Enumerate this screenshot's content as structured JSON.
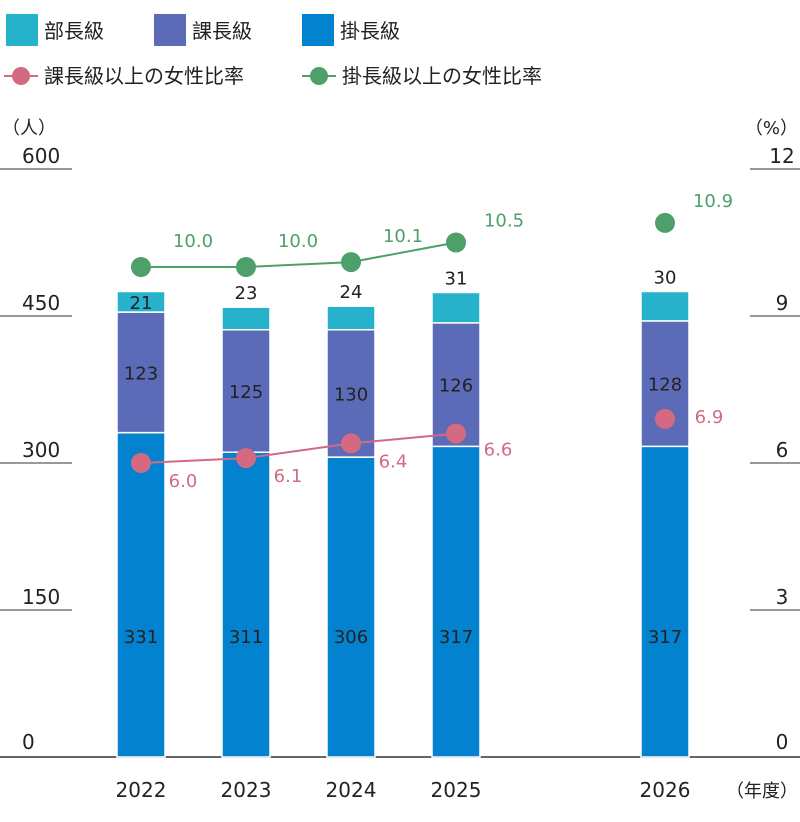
{
  "legend": {
    "bars": [
      {
        "name": "部長級",
        "color": "#26b2cb"
      },
      {
        "name": "課長級",
        "color": "#5b6bb7"
      },
      {
        "name": "掛長級",
        "color": "#0382d0"
      }
    ],
    "lines": [
      {
        "name": "課長級以上の女性比率",
        "color": "#d46a82"
      },
      {
        "name": "掛長級以上の女性比率",
        "color": "#4ea06a"
      }
    ]
  },
  "axes": {
    "left_unit": "（人）",
    "right_unit": "（%）",
    "x_unit": "（年度）",
    "left_ticks": [
      "0",
      "150",
      "300",
      "450",
      "600"
    ],
    "right_ticks": [
      "0",
      "3",
      "6",
      "9",
      "12"
    ]
  },
  "chart_data": {
    "type": "bar",
    "stacked": true,
    "categories": [
      "2022",
      "2023",
      "2024",
      "2025",
      "2026"
    ],
    "ylim_left": [
      0,
      600
    ],
    "ylim_right": [
      0,
      12
    ],
    "series": [
      {
        "name": "掛長級",
        "values": [
          331,
          311,
          306,
          317,
          317
        ],
        "color": "#0382d0"
      },
      {
        "name": "課長級",
        "values": [
          123,
          125,
          130,
          126,
          128
        ],
        "color": "#5b6bb7"
      },
      {
        "name": "部長級",
        "values": [
          21,
          23,
          24,
          31,
          30
        ],
        "color": "#26b2cb"
      }
    ],
    "lines": [
      {
        "name": "課長級以上の女性比率",
        "values": [
          6.0,
          6.1,
          6.4,
          6.6,
          6.9
        ],
        "color": "#d46a82",
        "labels": [
          "6.0",
          "6.1",
          "6.4",
          "6.6",
          "6.9"
        ],
        "connected_through": 3
      },
      {
        "name": "掛長級以上の女性比率",
        "values": [
          10.0,
          10.0,
          10.1,
          10.5,
          10.9
        ],
        "color": "#4ea06a",
        "labels": [
          "10.0",
          "10.0",
          "10.1",
          "10.5",
          "10.9"
        ],
        "connected_through": 3
      }
    ]
  }
}
